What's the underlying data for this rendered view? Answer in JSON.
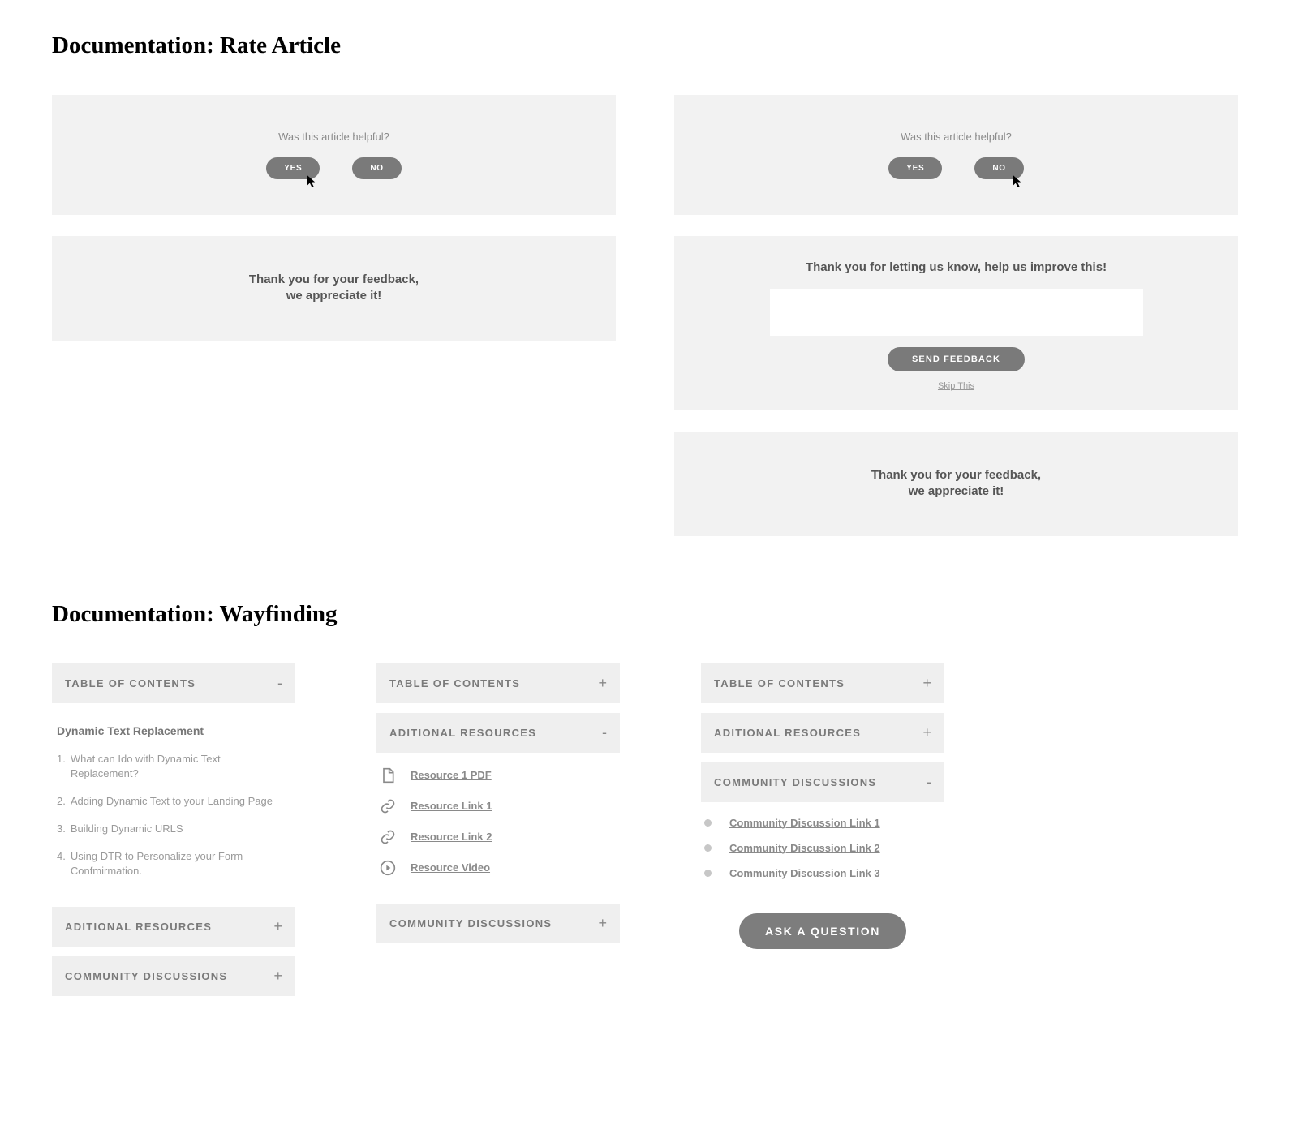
{
  "section1_title": "Documentation: Rate Article",
  "section2_title": "Documentation: Wayfinding",
  "rate": {
    "prompt": "Was this article helpful?",
    "yes": "YES",
    "no": "NO",
    "thank_line1": "Thank you for your feedback,",
    "thank_line2": "we appreciate it!",
    "improve_heading": "Thank you for letting us know, help us improve this!",
    "send": "SEND FEEDBACK",
    "skip": "Skip This"
  },
  "wayfinding": {
    "toc_label": "TABLE OF CONTENTS",
    "res_label": "ADITIONAL RESOURCES",
    "disc_label": "COMMUNITY DISCUSSIONS",
    "minus": "-",
    "plus": "+",
    "toc_title": "Dynamic Text Replacement",
    "toc_items": [
      {
        "num": "1.",
        "txt": "What can Ido with Dynamic Text Replacement?"
      },
      {
        "num": "2.",
        "txt": "Adding Dynamic Text to your Landing Page"
      },
      {
        "num": "3.",
        "txt": "Building Dynamic URLS"
      },
      {
        "num": "4.",
        "txt": "Using DTR to Personalize your Form Confmirmation."
      }
    ],
    "resources": [
      {
        "icon": "file",
        "label": "Resource 1 PDF"
      },
      {
        "icon": "link",
        "label": "Resource Link 1"
      },
      {
        "icon": "link",
        "label": "Resource Link 2"
      },
      {
        "icon": "video",
        "label": "Resource Video"
      }
    ],
    "discussions": [
      "Community Discussion Link 1",
      "Community Discussion Link 2",
      "Community Discussion Link 3"
    ],
    "ask": "ASK A QUESTION"
  }
}
